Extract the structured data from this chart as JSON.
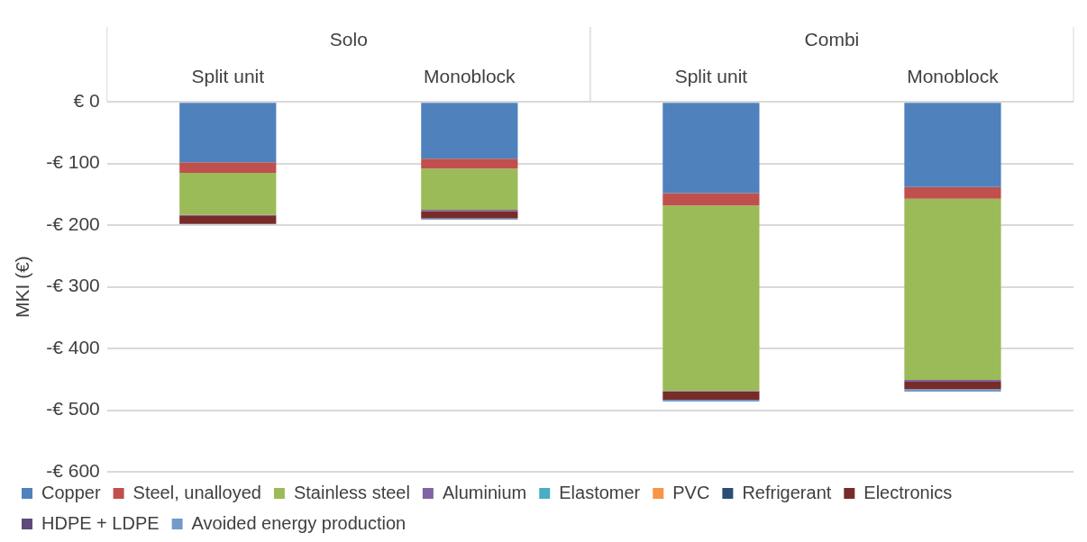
{
  "chart_data": {
    "type": "bar",
    "stacked": true,
    "ylabel": "MKI (€)",
    "categories": [
      "Split unit",
      "Monoblock",
      "Split unit",
      "Monoblock"
    ],
    "annotations": [
      "Solo",
      "Combi"
    ],
    "series": [
      {
        "name": "Copper",
        "color": "#4f81bd",
        "values": [
          -98,
          -92,
          -148,
          -138
        ]
      },
      {
        "name": "Steel, unalloyed",
        "color": "#c0504d",
        "values": [
          -17,
          -16,
          -20,
          -19
        ]
      },
      {
        "name": "Stainless steel",
        "color": "#9bbb59",
        "values": [
          -68,
          -67,
          -301,
          -294
        ]
      },
      {
        "name": "Aluminium",
        "color": "#8064a2",
        "values": [
          -1,
          -2,
          -1,
          -3
        ]
      },
      {
        "name": "Elastomer",
        "color": "#4bacc6",
        "values": [
          0,
          0,
          0,
          0
        ]
      },
      {
        "name": "PVC",
        "color": "#f79646",
        "values": [
          0,
          0,
          0,
          0
        ]
      },
      {
        "name": "Refrigerant",
        "color": "#2c4d75",
        "values": [
          0,
          0,
          0,
          0
        ]
      },
      {
        "name": "Electronics",
        "color": "#772c2a",
        "values": [
          -14,
          -12,
          -13,
          -12
        ]
      },
      {
        "name": "HDPE + LDPE",
        "color": "#5f497a",
        "values": [
          0,
          0,
          0,
          0
        ]
      },
      {
        "name": "Avoided energy production",
        "color": "#729aca",
        "values": [
          null,
          -2,
          -3,
          -4
        ]
      }
    ],
    "ylim": [
      -600,
      0
    ],
    "yticks": [
      {
        "value": 0,
        "label": "€ 0"
      },
      {
        "value": -100,
        "label": "-€ 100"
      },
      {
        "value": -200,
        "label": "-€ 200"
      },
      {
        "value": -300,
        "label": "-€ 300"
      },
      {
        "value": -400,
        "label": "-€ 400"
      },
      {
        "value": -500,
        "label": "-€ 500"
      },
      {
        "value": -600,
        "label": "-€ 600"
      }
    ],
    "grid": "y",
    "legend": "bottom"
  }
}
